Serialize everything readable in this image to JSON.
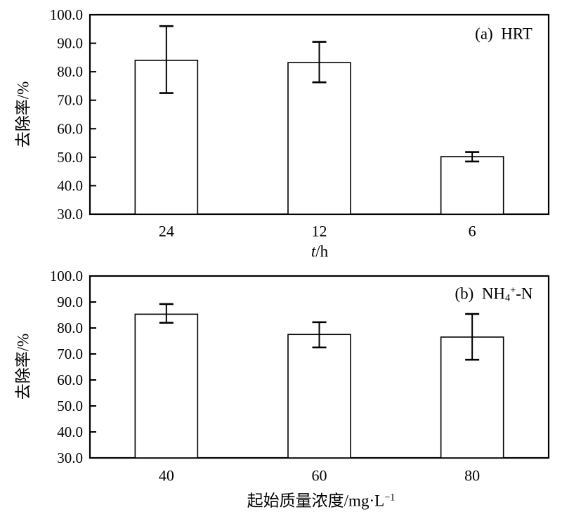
{
  "styles": {
    "ink": "#000000",
    "background": "#ffffff",
    "bar_fill": "#ffffff"
  },
  "chart_data": [
    {
      "type": "bar",
      "panel_tag_parts": [
        {
          "t": "(a)  HRT"
        }
      ],
      "xlabel_parts": [
        {
          "t": "t",
          "style": "italic"
        },
        {
          "t": "/h"
        }
      ],
      "ylabel": "去除率/%",
      "categories": [
        "24",
        "12",
        "6"
      ],
      "values": [
        84.0,
        83.2,
        50.2
      ],
      "error_low": [
        72.5,
        76.3,
        48.5
      ],
      "error_high": [
        96.0,
        90.5,
        51.8
      ],
      "ylim": [
        30.0,
        100.0
      ],
      "ytick_step": 10,
      "ytick_decimals": 1,
      "grid": false,
      "legend": "none"
    },
    {
      "type": "bar",
      "panel_tag_parts": [
        {
          "t": "(b)  NH"
        },
        {
          "t": "4",
          "style": "sub"
        },
        {
          "t": "+",
          "style": "sup"
        },
        {
          "t": "-N"
        }
      ],
      "xlabel_parts": [
        {
          "t": "起始质量浓度/mg·L"
        },
        {
          "t": "−1",
          "style": "sup"
        }
      ],
      "ylabel": "去除率/%",
      "categories": [
        "40",
        "60",
        "80"
      ],
      "values": [
        85.3,
        77.5,
        76.5
      ],
      "error_low": [
        82.0,
        72.5,
        67.8
      ],
      "error_high": [
        89.2,
        82.2,
        85.4
      ],
      "ylim": [
        30.0,
        100.0
      ],
      "ytick_step": 10,
      "ytick_decimals": 1,
      "grid": false,
      "legend": "none"
    }
  ]
}
